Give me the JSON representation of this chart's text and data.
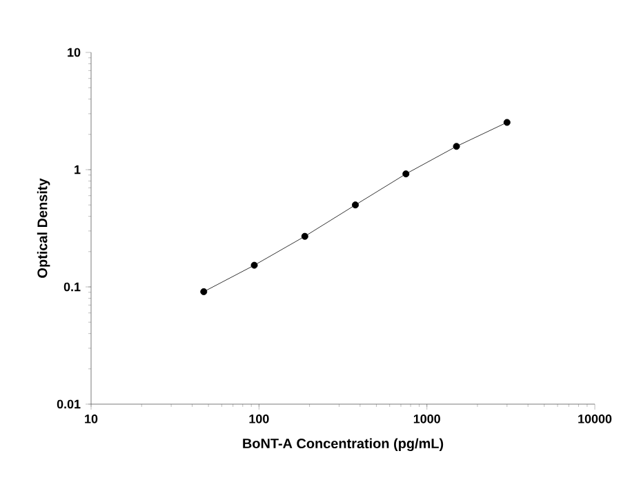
{
  "chart_data": {
    "type": "line",
    "xlabel": "BoNT-A Concentration (pg/mL)",
    "ylabel": "Optical Density",
    "x": [
      46.875,
      93.75,
      187.5,
      375,
      750,
      1500,
      3000
    ],
    "series": [
      {
        "color": "#000000",
        "values": [
          0.091,
          0.153,
          0.27,
          0.5,
          0.92,
          1.58,
          2.53
        ]
      }
    ],
    "log": "xy",
    "xlim": [
      10,
      10000
    ],
    "ylim": [
      0.01,
      10
    ],
    "xticks": [
      10,
      100,
      1000,
      10000
    ],
    "yticks": [
      0.01,
      0.1,
      1,
      10
    ],
    "marker": "circle",
    "line_style": "solid"
  }
}
